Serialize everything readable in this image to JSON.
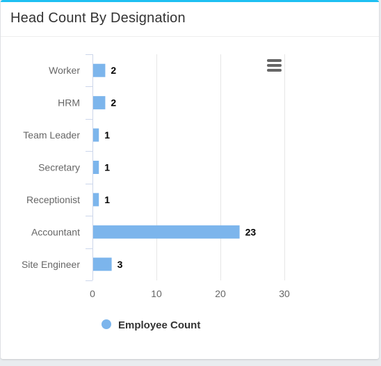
{
  "card": {
    "title": "Head Count By Designation",
    "menu_icon": "hamburger-menu-icon"
  },
  "colors": {
    "bar": "#7cb5ec",
    "accent": "#1ec0f2",
    "grid": "#e6e6e6",
    "axis": "#ccd6eb",
    "label": "#666666",
    "data_label": "#000000"
  },
  "chart_data": {
    "type": "bar",
    "orientation": "horizontal",
    "title": "",
    "xlabel": "",
    "ylabel": "",
    "categories": [
      "Worker",
      "HRM",
      "Team Leader",
      "Secretary",
      "Receptionist",
      "Accountant",
      "Site Engineer"
    ],
    "series": [
      {
        "name": "Employee Count",
        "values": [
          2,
          2,
          1,
          1,
          1,
          23,
          3
        ]
      }
    ],
    "value_axis": {
      "min": 0,
      "max": 30,
      "ticks": [
        0,
        10,
        20,
        30
      ]
    },
    "grid": true,
    "data_labels": true,
    "legend": {
      "position": "bottom-left"
    }
  }
}
